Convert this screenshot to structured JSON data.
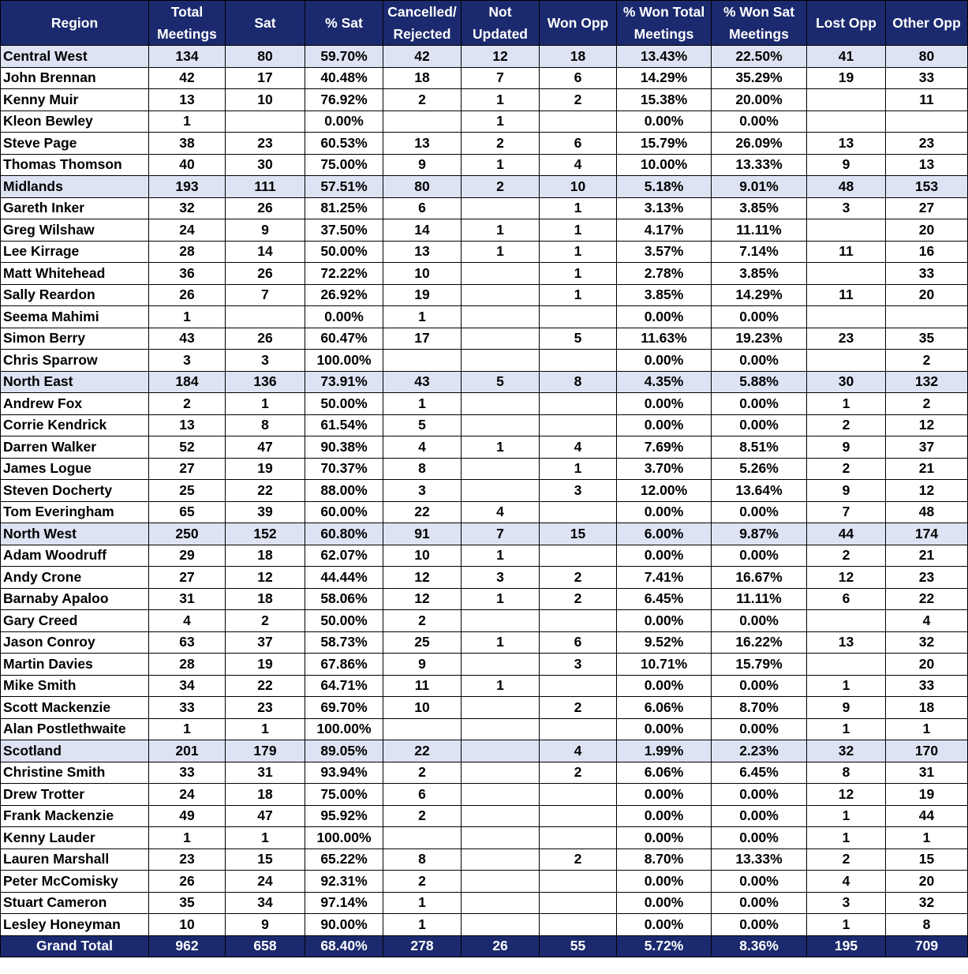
{
  "columns": [
    "Region",
    "Total Meetings",
    "Sat",
    "% Sat",
    "Cancelled/ Rejected",
    "Not Updated",
    "Won Opp",
    "% Won Total Meetings",
    "% Won Sat Meetings",
    "Lost Opp",
    "Other Opp"
  ],
  "rows": [
    {
      "type": "region",
      "cells": [
        "Central West",
        "134",
        "80",
        "59.70%",
        "42",
        "12",
        "18",
        "13.43%",
        "22.50%",
        "41",
        "80"
      ]
    },
    {
      "type": "person",
      "cells": [
        "John Brennan",
        "42",
        "17",
        "40.48%",
        "18",
        "7",
        "6",
        "14.29%",
        "35.29%",
        "19",
        "33"
      ]
    },
    {
      "type": "person",
      "cells": [
        "Kenny Muir",
        "13",
        "10",
        "76.92%",
        "2",
        "1",
        "2",
        "15.38%",
        "20.00%",
        "",
        "11"
      ]
    },
    {
      "type": "person",
      "cells": [
        "Kleon Bewley",
        "1",
        "",
        "0.00%",
        "",
        "1",
        "",
        "0.00%",
        "0.00%",
        "",
        ""
      ]
    },
    {
      "type": "person",
      "cells": [
        "Steve Page",
        "38",
        "23",
        "60.53%",
        "13",
        "2",
        "6",
        "15.79%",
        "26.09%",
        "13",
        "23"
      ]
    },
    {
      "type": "person",
      "cells": [
        "Thomas Thomson",
        "40",
        "30",
        "75.00%",
        "9",
        "1",
        "4",
        "10.00%",
        "13.33%",
        "9",
        "13"
      ]
    },
    {
      "type": "region",
      "cells": [
        "Midlands",
        "193",
        "111",
        "57.51%",
        "80",
        "2",
        "10",
        "5.18%",
        "9.01%",
        "48",
        "153"
      ]
    },
    {
      "type": "person",
      "cells": [
        "Gareth Inker",
        "32",
        "26",
        "81.25%",
        "6",
        "",
        "1",
        "3.13%",
        "3.85%",
        "3",
        "27"
      ]
    },
    {
      "type": "person",
      "cells": [
        "Greg Wilshaw",
        "24",
        "9",
        "37.50%",
        "14",
        "1",
        "1",
        "4.17%",
        "11.11%",
        "",
        "20"
      ]
    },
    {
      "type": "person",
      "cells": [
        "Lee Kirrage",
        "28",
        "14",
        "50.00%",
        "13",
        "1",
        "1",
        "3.57%",
        "7.14%",
        "11",
        "16"
      ]
    },
    {
      "type": "person",
      "cells": [
        "Matt Whitehead",
        "36",
        "26",
        "72.22%",
        "10",
        "",
        "1",
        "2.78%",
        "3.85%",
        "",
        "33"
      ]
    },
    {
      "type": "person",
      "cells": [
        "Sally Reardon",
        "26",
        "7",
        "26.92%",
        "19",
        "",
        "1",
        "3.85%",
        "14.29%",
        "11",
        "20"
      ]
    },
    {
      "type": "person",
      "cells": [
        "Seema Mahimi",
        "1",
        "",
        "0.00%",
        "1",
        "",
        "",
        "0.00%",
        "0.00%",
        "",
        ""
      ]
    },
    {
      "type": "person",
      "cells": [
        "Simon Berry",
        "43",
        "26",
        "60.47%",
        "17",
        "",
        "5",
        "11.63%",
        "19.23%",
        "23",
        "35"
      ]
    },
    {
      "type": "person",
      "cells": [
        "Chris Sparrow",
        "3",
        "3",
        "100.00%",
        "",
        "",
        "",
        "0.00%",
        "0.00%",
        "",
        "2"
      ]
    },
    {
      "type": "region",
      "cells": [
        "North East",
        "184",
        "136",
        "73.91%",
        "43",
        "5",
        "8",
        "4.35%",
        "5.88%",
        "30",
        "132"
      ]
    },
    {
      "type": "person",
      "cells": [
        "Andrew Fox",
        "2",
        "1",
        "50.00%",
        "1",
        "",
        "",
        "0.00%",
        "0.00%",
        "1",
        "2"
      ]
    },
    {
      "type": "person",
      "cells": [
        "Corrie Kendrick",
        "13",
        "8",
        "61.54%",
        "5",
        "",
        "",
        "0.00%",
        "0.00%",
        "2",
        "12"
      ]
    },
    {
      "type": "person",
      "cells": [
        "Darren Walker",
        "52",
        "47",
        "90.38%",
        "4",
        "1",
        "4",
        "7.69%",
        "8.51%",
        "9",
        "37"
      ]
    },
    {
      "type": "person",
      "cells": [
        "James Logue",
        "27",
        "19",
        "70.37%",
        "8",
        "",
        "1",
        "3.70%",
        "5.26%",
        "2",
        "21"
      ]
    },
    {
      "type": "person",
      "cells": [
        "Steven Docherty",
        "25",
        "22",
        "88.00%",
        "3",
        "",
        "3",
        "12.00%",
        "13.64%",
        "9",
        "12"
      ]
    },
    {
      "type": "person",
      "cells": [
        "Tom Everingham",
        "65",
        "39",
        "60.00%",
        "22",
        "4",
        "",
        "0.00%",
        "0.00%",
        "7",
        "48"
      ]
    },
    {
      "type": "region",
      "cells": [
        "North West",
        "250",
        "152",
        "60.80%",
        "91",
        "7",
        "15",
        "6.00%",
        "9.87%",
        "44",
        "174"
      ]
    },
    {
      "type": "person",
      "cells": [
        "Adam Woodruff",
        "29",
        "18",
        "62.07%",
        "10",
        "1",
        "",
        "0.00%",
        "0.00%",
        "2",
        "21"
      ]
    },
    {
      "type": "person",
      "cells": [
        "Andy Crone",
        "27",
        "12",
        "44.44%",
        "12",
        "3",
        "2",
        "7.41%",
        "16.67%",
        "12",
        "23"
      ]
    },
    {
      "type": "person",
      "cells": [
        "Barnaby Apaloo",
        "31",
        "18",
        "58.06%",
        "12",
        "1",
        "2",
        "6.45%",
        "11.11%",
        "6",
        "22"
      ]
    },
    {
      "type": "person",
      "cells": [
        "Gary Creed",
        "4",
        "2",
        "50.00%",
        "2",
        "",
        "",
        "0.00%",
        "0.00%",
        "",
        "4"
      ]
    },
    {
      "type": "person",
      "cells": [
        "Jason Conroy",
        "63",
        "37",
        "58.73%",
        "25",
        "1",
        "6",
        "9.52%",
        "16.22%",
        "13",
        "32"
      ]
    },
    {
      "type": "person",
      "cells": [
        "Martin Davies",
        "28",
        "19",
        "67.86%",
        "9",
        "",
        "3",
        "10.71%",
        "15.79%",
        "",
        "20"
      ]
    },
    {
      "type": "person",
      "cells": [
        "Mike Smith",
        "34",
        "22",
        "64.71%",
        "11",
        "1",
        "",
        "0.00%",
        "0.00%",
        "1",
        "33"
      ]
    },
    {
      "type": "person",
      "cells": [
        "Scott Mackenzie",
        "33",
        "23",
        "69.70%",
        "10",
        "",
        "2",
        "6.06%",
        "8.70%",
        "9",
        "18"
      ]
    },
    {
      "type": "person",
      "cells": [
        "Alan Postlethwaite",
        "1",
        "1",
        "100.00%",
        "",
        "",
        "",
        "0.00%",
        "0.00%",
        "1",
        "1"
      ]
    },
    {
      "type": "region",
      "cells": [
        "Scotland",
        "201",
        "179",
        "89.05%",
        "22",
        "",
        "4",
        "1.99%",
        "2.23%",
        "32",
        "170"
      ]
    },
    {
      "type": "person",
      "cells": [
        "Christine Smith",
        "33",
        "31",
        "93.94%",
        "2",
        "",
        "2",
        "6.06%",
        "6.45%",
        "8",
        "31"
      ]
    },
    {
      "type": "person",
      "cells": [
        "Drew Trotter",
        "24",
        "18",
        "75.00%",
        "6",
        "",
        "",
        "0.00%",
        "0.00%",
        "12",
        "19"
      ]
    },
    {
      "type": "person",
      "cells": [
        "Frank Mackenzie",
        "49",
        "47",
        "95.92%",
        "2",
        "",
        "",
        "0.00%",
        "0.00%",
        "1",
        "44"
      ]
    },
    {
      "type": "person",
      "cells": [
        "Kenny Lauder",
        "1",
        "1",
        "100.00%",
        "",
        "",
        "",
        "0.00%",
        "0.00%",
        "1",
        "1"
      ]
    },
    {
      "type": "person",
      "cells": [
        "Lauren Marshall",
        "23",
        "15",
        "65.22%",
        "8",
        "",
        "2",
        "8.70%",
        "13.33%",
        "2",
        "15"
      ]
    },
    {
      "type": "person",
      "cells": [
        "Peter McComisky",
        "26",
        "24",
        "92.31%",
        "2",
        "",
        "",
        "0.00%",
        "0.00%",
        "4",
        "20"
      ]
    },
    {
      "type": "person",
      "cells": [
        "Stuart Cameron",
        "35",
        "34",
        "97.14%",
        "1",
        "",
        "",
        "0.00%",
        "0.00%",
        "3",
        "32"
      ]
    },
    {
      "type": "person",
      "cells": [
        "Lesley Honeyman",
        "10",
        "9",
        "90.00%",
        "1",
        "",
        "",
        "0.00%",
        "0.00%",
        "1",
        "8"
      ]
    }
  ],
  "grand_total": [
    "Grand Total",
    "962",
    "658",
    "68.40%",
    "278",
    "26",
    "55",
    "5.72%",
    "8.36%",
    "195",
    "709"
  ],
  "colors": {
    "header_bg": "#1b2a6e",
    "header_text": "#ffffff",
    "region_row_bg": "#dde3f3",
    "border": "#000000"
  }
}
